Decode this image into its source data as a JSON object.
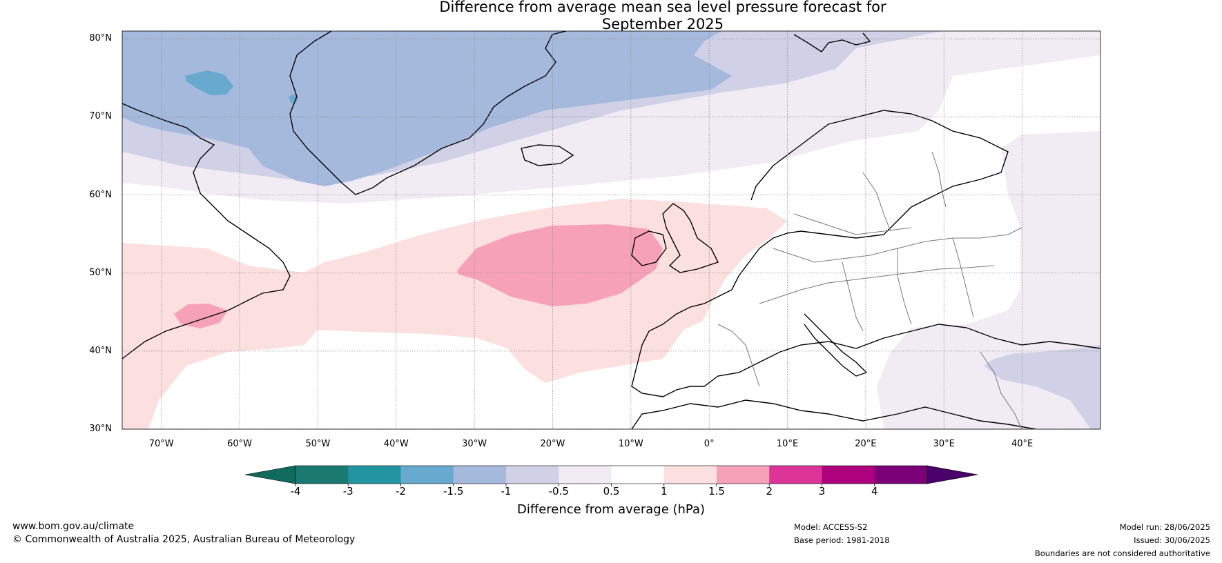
{
  "title_line1": "Difference from average mean sea level pressure forecast for",
  "title_line2": "September 2025",
  "map": {
    "lat_labels": [
      "80°N",
      "70°N",
      "60°N",
      "50°N",
      "40°N",
      "30°N"
    ],
    "lon_labels": [
      "70°W",
      "60°W",
      "50°W",
      "40°W",
      "30°W",
      "20°W",
      "10°W",
      "0°",
      "10°E",
      "20°E",
      "30°E",
      "40°E"
    ],
    "extent": {
      "lon_min": -75,
      "lon_max": 50,
      "lat_min": 30,
      "lat_max": 81
    }
  },
  "colorbar": {
    "ticks": [
      "-4",
      "-3",
      "-2",
      "-1.5",
      "-1",
      "-0.5",
      "0.5",
      "1",
      "1.5",
      "2",
      "3",
      "4"
    ],
    "colors": [
      "#1a7a70",
      "#2196a0",
      "#67a9cf",
      "#a5b9dc",
      "#d0d1e6",
      "#f1ebf4",
      "#ffffff",
      "#fcdfdf",
      "#f7a1b9",
      "#dd3497",
      "#ae017e",
      "#7a0177"
    ],
    "under_color": "#0e6b5e",
    "over_color": "#49006a",
    "label": "Difference from average (hPa)"
  },
  "footer": {
    "url": "www.bom.gov.au/climate",
    "copyright": "© Commonwealth of Australia 2025, Australian Bureau of Meteorology",
    "model": "Model: ACCESS-S2",
    "base_period": "Base period: 1981-2018",
    "model_run": "Model run: 28/06/2025",
    "issued": "Issued: 30/06/2025",
    "boundaries": "Boundaries are not considered authoritative"
  }
}
